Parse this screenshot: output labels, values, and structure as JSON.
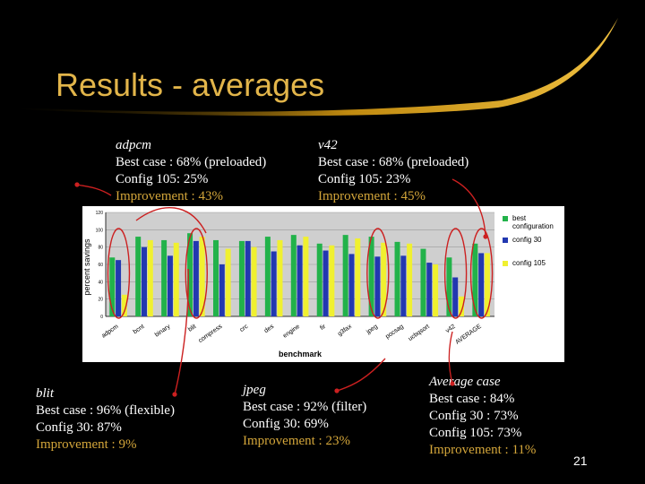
{
  "slide": {
    "title": "Results - averages",
    "page_number": "21",
    "accent_color": "#e2b54a",
    "arrow_color": "#cc2020"
  },
  "annotations": {
    "adpcm": {
      "heading": "adpcm",
      "best": "Best case : 68% (preloaded)",
      "config": "Config 105: 25%",
      "improvement": "Improvement : 43%"
    },
    "v42": {
      "heading": "v42",
      "best": "Best case : 68% (preloaded)",
      "config": "Config 105: 23%",
      "improvement": "Improvement : 45%"
    },
    "blit": {
      "heading": "blit",
      "best": "Best case : 96% (flexible)",
      "config": "Config 30: 87%",
      "improvement": "Improvement : 9%"
    },
    "jpeg": {
      "heading": "jpeg",
      "best": "Best case : 92% (filter)",
      "config": "Config 30: 69%",
      "improvement": "Improvement : 23%"
    },
    "average": {
      "heading": "Average case",
      "best": "Best case : 84%",
      "config30": "Config 30 : 73%",
      "config105": "Config 105: 73%",
      "improvement": "Improvement : 11%"
    }
  },
  "chart_data": {
    "type": "bar",
    "xlabel": "benchmark",
    "ylabel": "percent savings",
    "ylim": [
      0,
      100
    ],
    "yticks": [
      "0",
      "20",
      "40",
      "60",
      "80",
      "100",
      "120"
    ],
    "categories": [
      "adpcm",
      "bcnt",
      "binary",
      "blit",
      "compress",
      "crc",
      "des",
      "engine",
      "fir",
      "g3fax",
      "jpeg",
      "pocsag",
      "ucbqsort",
      "v42",
      "AVERAGE"
    ],
    "series": [
      {
        "name": "best configuration",
        "color": "#22b24a",
        "values": [
          68,
          92,
          88,
          96,
          88,
          87,
          92,
          94,
          84,
          94,
          92,
          86,
          78,
          68,
          84
        ]
      },
      {
        "name": "config 30",
        "color": "#2238b0",
        "values": [
          65,
          80,
          70,
          87,
          60,
          87,
          75,
          82,
          76,
          72,
          69,
          70,
          62,
          45,
          73
        ]
      },
      {
        "name": "config 105",
        "color": "#f0f030",
        "values": [
          25,
          88,
          85,
          92,
          78,
          80,
          88,
          92,
          82,
          90,
          85,
          84,
          60,
          23,
          73
        ]
      }
    ]
  }
}
